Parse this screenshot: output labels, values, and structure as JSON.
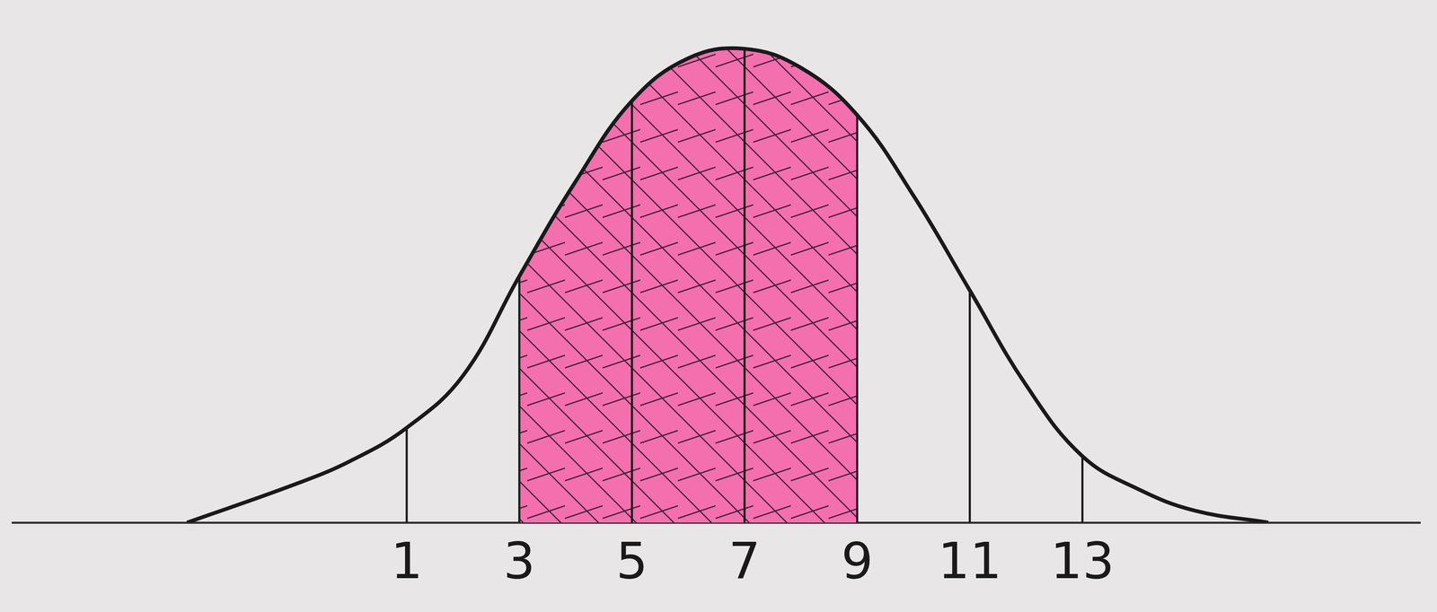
{
  "chart_data": {
    "type": "line",
    "x": [
      -2.9,
      -1,
      0,
      1,
      2,
      3,
      4,
      5,
      6,
      7,
      8,
      9,
      10,
      11,
      12,
      13,
      14,
      15,
      16.3
    ],
    "values": [
      0,
      0.08,
      0.13,
      0.2,
      0.31,
      0.52,
      0.72,
      0.89,
      0.98,
      1.0,
      0.96,
      0.86,
      0.69,
      0.49,
      0.29,
      0.14,
      0.07,
      0.025,
      0
    ],
    "color": "#1a1a1a",
    "shade": {
      "range": [
        3,
        9
      ],
      "color": "#f46fae"
    },
    "xlim": [
      -6,
      19
    ],
    "xticks": [
      1,
      3,
      5,
      7,
      9,
      11,
      13
    ],
    "ylim": [
      0,
      1.05
    ],
    "grid": false,
    "tick_labels": "x"
  }
}
